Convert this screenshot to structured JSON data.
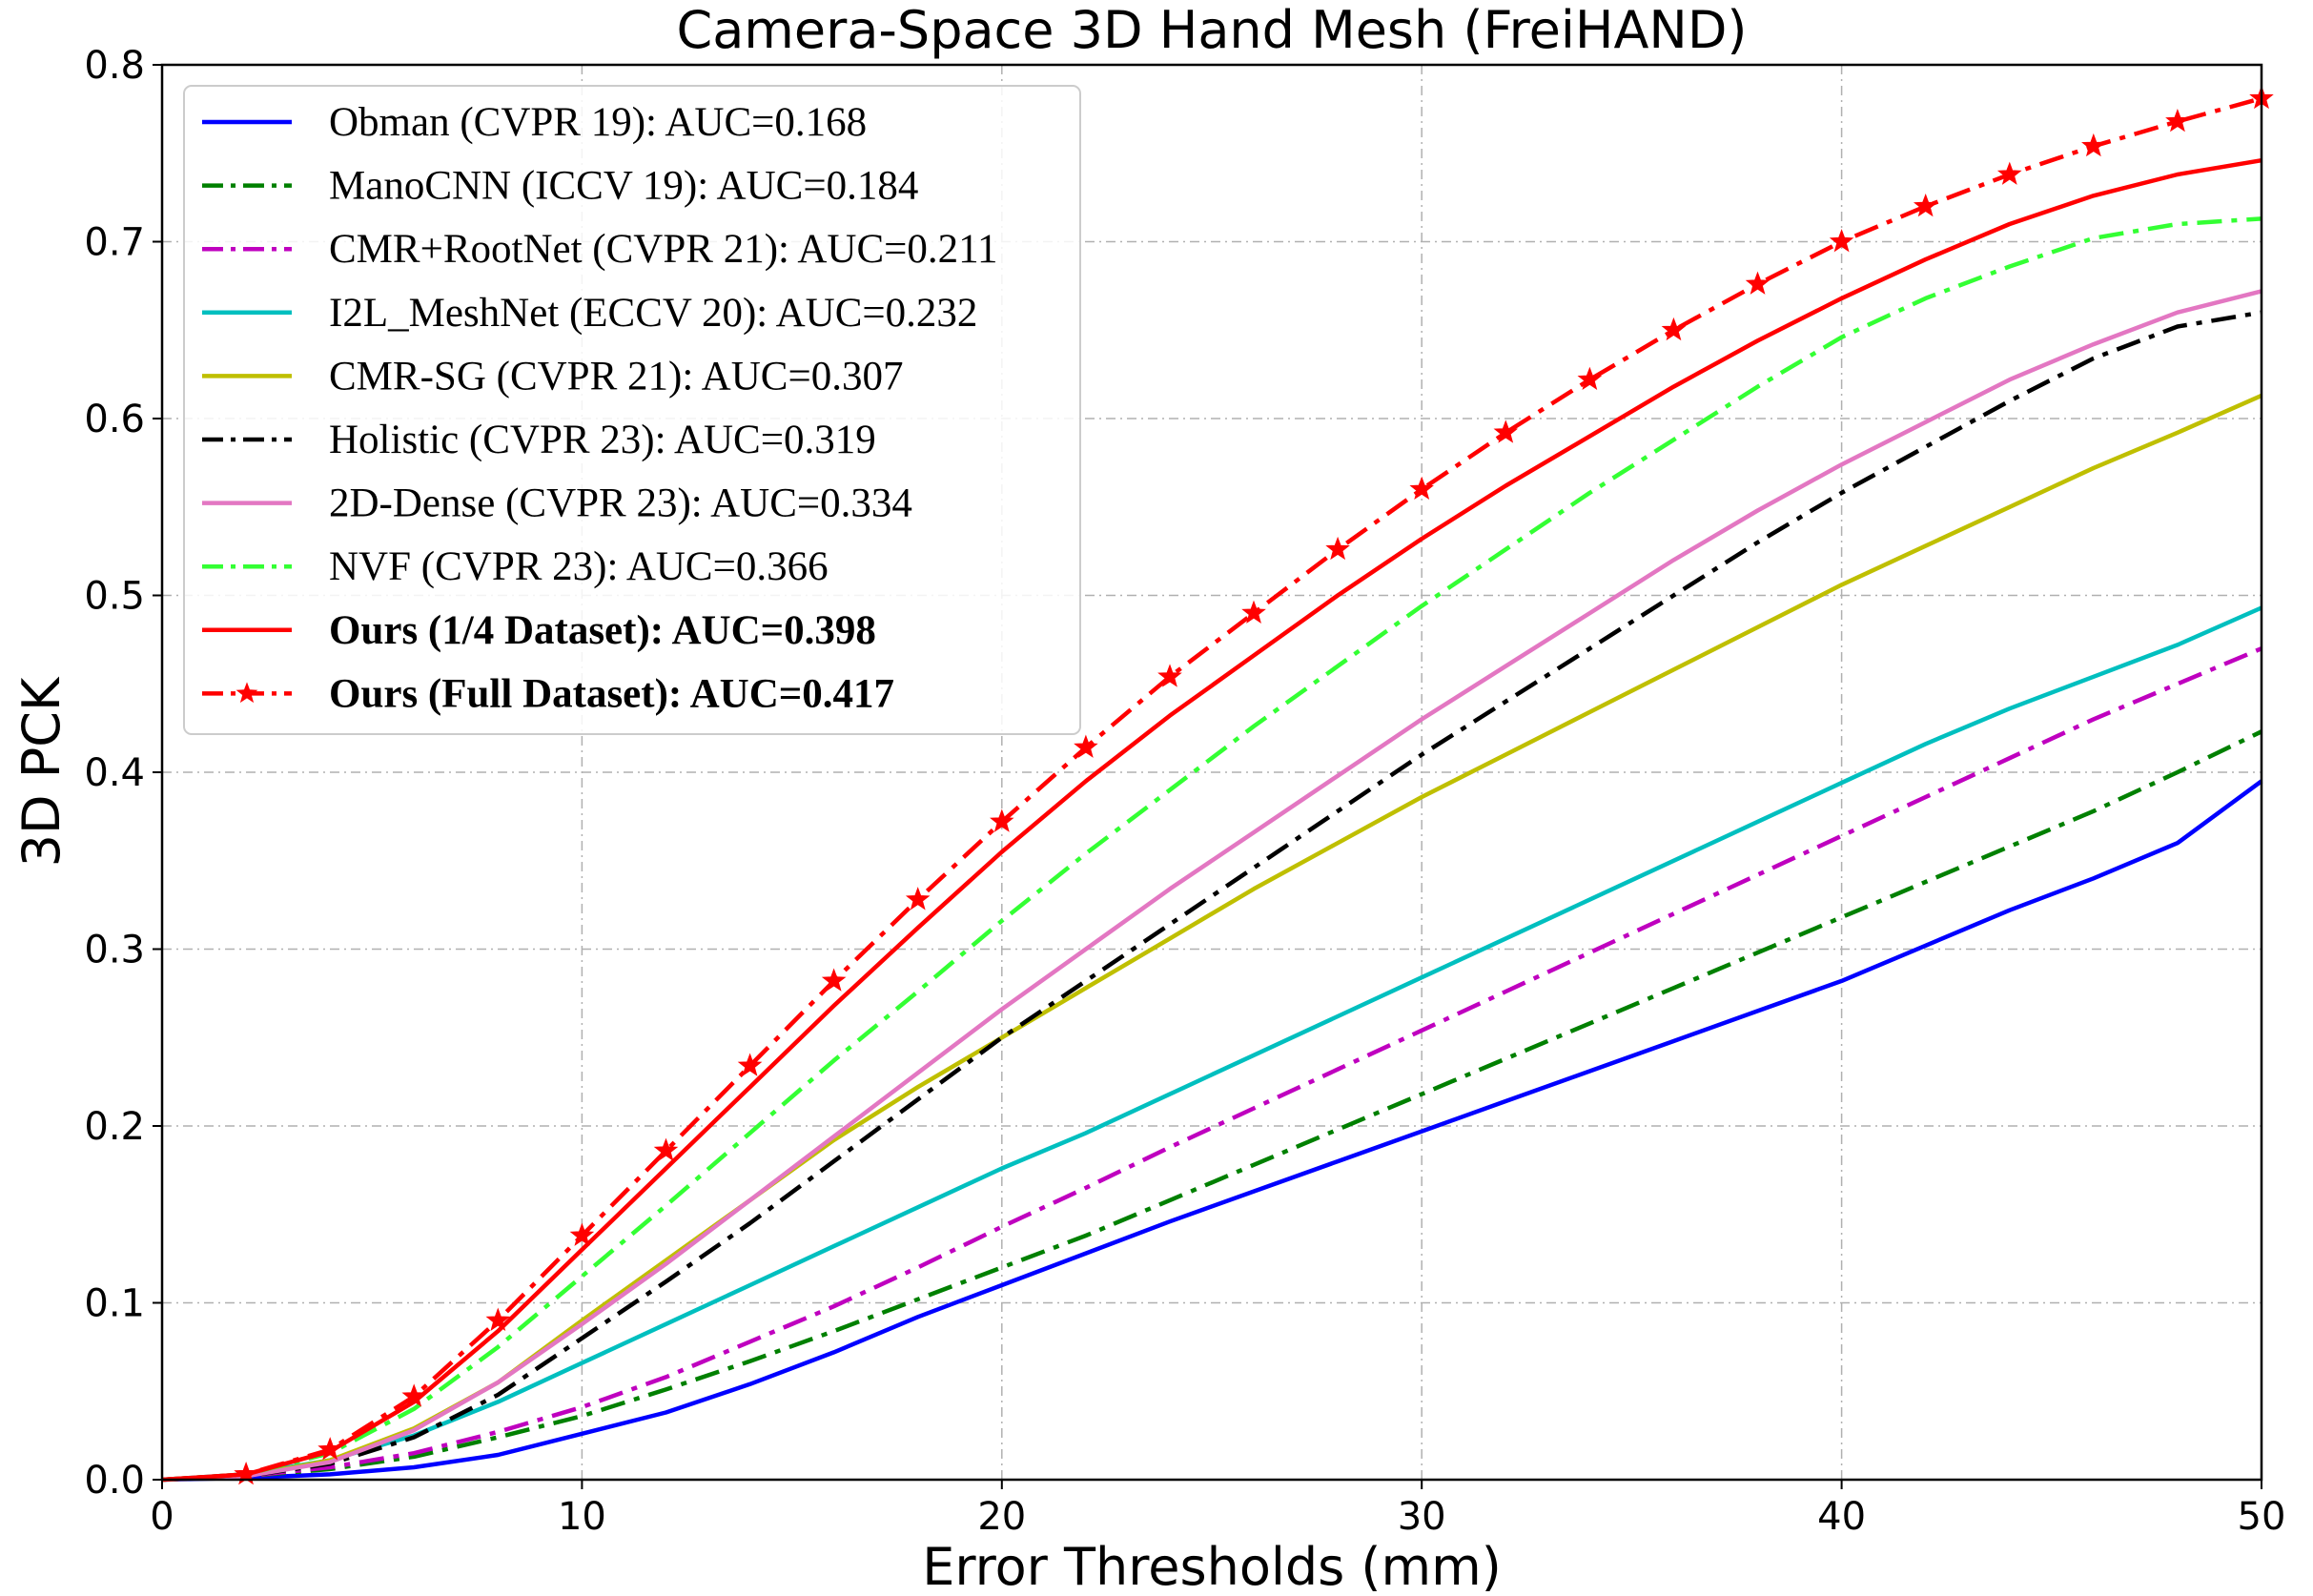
{
  "chart_data": {
    "type": "line",
    "title": "Camera-Space 3D Hand Mesh (FreiHAND)",
    "xlabel": "Error Thresholds (mm)",
    "ylabel": "3D PCK",
    "xlim": [
      0,
      50
    ],
    "ylim": [
      0,
      0.8
    ],
    "x_ticks": [
      "0",
      "10",
      "20",
      "30",
      "40",
      "50"
    ],
    "y_ticks": [
      "0.0",
      "0.1",
      "0.2",
      "0.3",
      "0.4",
      "0.5",
      "0.6",
      "0.7",
      "0.8"
    ],
    "grid": true,
    "legend_position": "upper-left",
    "series": [
      {
        "name": "Obman (CVPR 19): AUC=0.168",
        "color": "#0000ff",
        "style": "solid",
        "marker": "none",
        "bold": false,
        "x": [
          0,
          2,
          4,
          6,
          8,
          10,
          12,
          14,
          16,
          18,
          20,
          22,
          24,
          26,
          28,
          30,
          32,
          34,
          36,
          38,
          40,
          42,
          44,
          46,
          48,
          50
        ],
        "y": [
          0,
          0.001,
          0.003,
          0.007,
          0.014,
          0.026,
          0.038,
          0.054,
          0.072,
          0.092,
          0.11,
          0.128,
          0.146,
          0.163,
          0.18,
          0.197,
          0.214,
          0.231,
          0.248,
          0.265,
          0.282,
          0.302,
          0.322,
          0.34,
          0.36,
          0.395
        ]
      },
      {
        "name": "ManoCNN (ICCV 19): AUC=0.184",
        "color": "#008000",
        "style": "dashdot",
        "marker": "none",
        "bold": false,
        "x": [
          0,
          2,
          4,
          6,
          8,
          10,
          12,
          14,
          16,
          18,
          20,
          22,
          24,
          26,
          28,
          30,
          32,
          34,
          36,
          38,
          40,
          42,
          44,
          46,
          48,
          50
        ],
        "y": [
          0,
          0.002,
          0.006,
          0.013,
          0.024,
          0.036,
          0.051,
          0.067,
          0.084,
          0.102,
          0.12,
          0.138,
          0.158,
          0.178,
          0.198,
          0.218,
          0.238,
          0.258,
          0.278,
          0.298,
          0.318,
          0.338,
          0.358,
          0.378,
          0.4,
          0.423
        ]
      },
      {
        "name": "CMR+RootNet (CVPR 21): AUC=0.211",
        "color": "#bf00bf",
        "style": "dashdot",
        "marker": "none",
        "bold": false,
        "x": [
          0,
          2,
          4,
          6,
          8,
          10,
          12,
          14,
          16,
          18,
          20,
          22,
          24,
          26,
          28,
          30,
          32,
          34,
          36,
          38,
          40,
          42,
          44,
          46,
          48,
          50
        ],
        "y": [
          0,
          0.002,
          0.007,
          0.015,
          0.027,
          0.041,
          0.058,
          0.078,
          0.098,
          0.12,
          0.143,
          0.165,
          0.188,
          0.21,
          0.232,
          0.254,
          0.276,
          0.298,
          0.32,
          0.342,
          0.364,
          0.386,
          0.408,
          0.43,
          0.45,
          0.47
        ]
      },
      {
        "name": "I2L_MeshNet (ECCV 20): AUC=0.232",
        "color": "#00bfbf",
        "style": "solid",
        "marker": "none",
        "bold": false,
        "x": [
          0,
          2,
          4,
          6,
          8,
          10,
          12,
          14,
          16,
          18,
          20,
          22,
          24,
          26,
          28,
          30,
          32,
          34,
          36,
          38,
          40,
          42,
          44,
          46,
          48,
          50
        ],
        "y": [
          0,
          0.003,
          0.011,
          0.025,
          0.044,
          0.066,
          0.088,
          0.11,
          0.132,
          0.154,
          0.176,
          0.196,
          0.218,
          0.24,
          0.262,
          0.284,
          0.306,
          0.328,
          0.35,
          0.372,
          0.394,
          0.416,
          0.436,
          0.454,
          0.472,
          0.493
        ]
      },
      {
        "name": "CMR-SG (CVPR 21): AUC=0.307",
        "color": "#bfbf00",
        "style": "solid",
        "marker": "none",
        "bold": false,
        "x": [
          0,
          2,
          4,
          6,
          8,
          10,
          12,
          14,
          16,
          18,
          20,
          22,
          24,
          26,
          28,
          30,
          32,
          34,
          36,
          38,
          40,
          42,
          44,
          46,
          48,
          50
        ],
        "y": [
          0,
          0.002,
          0.011,
          0.029,
          0.055,
          0.09,
          0.124,
          0.158,
          0.192,
          0.222,
          0.25,
          0.278,
          0.306,
          0.334,
          0.36,
          0.386,
          0.41,
          0.434,
          0.458,
          0.482,
          0.506,
          0.528,
          0.55,
          0.572,
          0.592,
          0.613
        ]
      },
      {
        "name": "Holistic (CVPR 23): AUC=0.319",
        "color": "#000000",
        "style": "dashdot",
        "marker": "none",
        "bold": false,
        "x": [
          0,
          2,
          4,
          6,
          8,
          10,
          12,
          14,
          16,
          18,
          20,
          22,
          24,
          26,
          28,
          30,
          32,
          34,
          36,
          38,
          40,
          42,
          44,
          46,
          48,
          50
        ],
        "y": [
          0,
          0.002,
          0.009,
          0.024,
          0.048,
          0.08,
          0.112,
          0.145,
          0.18,
          0.215,
          0.25,
          0.282,
          0.314,
          0.346,
          0.378,
          0.41,
          0.44,
          0.47,
          0.5,
          0.53,
          0.558,
          0.584,
          0.61,
          0.634,
          0.652,
          0.66
        ]
      },
      {
        "name": "2D-Dense (CVPR 23): AUC=0.334",
        "color": "#e377c2",
        "style": "solid",
        "marker": "none",
        "bold": false,
        "x": [
          0,
          2,
          4,
          6,
          8,
          10,
          12,
          14,
          16,
          18,
          20,
          22,
          24,
          26,
          28,
          30,
          32,
          34,
          36,
          38,
          40,
          42,
          44,
          46,
          48,
          50
        ],
        "y": [
          0,
          0.002,
          0.01,
          0.028,
          0.055,
          0.088,
          0.122,
          0.158,
          0.194,
          0.23,
          0.266,
          0.3,
          0.334,
          0.366,
          0.398,
          0.43,
          0.46,
          0.49,
          0.52,
          0.548,
          0.574,
          0.598,
          0.622,
          0.642,
          0.66,
          0.672
        ]
      },
      {
        "name": "NVF (CVPR 23): AUC=0.366",
        "color": "#33ff33",
        "style": "dashdot",
        "marker": "none",
        "bold": false,
        "x": [
          0,
          2,
          4,
          6,
          8,
          10,
          12,
          14,
          16,
          18,
          20,
          22,
          24,
          26,
          28,
          30,
          32,
          34,
          36,
          38,
          40,
          42,
          44,
          46,
          48,
          50
        ],
        "y": [
          0,
          0.003,
          0.015,
          0.04,
          0.075,
          0.115,
          0.155,
          0.196,
          0.237,
          0.276,
          0.316,
          0.354,
          0.39,
          0.426,
          0.46,
          0.494,
          0.526,
          0.558,
          0.588,
          0.618,
          0.646,
          0.668,
          0.686,
          0.702,
          0.71,
          0.713
        ]
      },
      {
        "name": "Ours (1/4 Dataset): AUC=0.398",
        "color": "#ff0000",
        "style": "solid",
        "marker": "none",
        "bold": true,
        "x": [
          0,
          2,
          4,
          6,
          8,
          10,
          12,
          14,
          16,
          18,
          20,
          22,
          24,
          26,
          28,
          30,
          32,
          34,
          36,
          38,
          40,
          42,
          44,
          46,
          48,
          50
        ],
        "y": [
          0,
          0.003,
          0.016,
          0.044,
          0.084,
          0.13,
          0.176,
          0.222,
          0.268,
          0.312,
          0.355,
          0.395,
          0.432,
          0.466,
          0.5,
          0.532,
          0.562,
          0.59,
          0.618,
          0.644,
          0.668,
          0.69,
          0.71,
          0.726,
          0.738,
          0.746
        ]
      },
      {
        "name": "Ours (Full Dataset): AUC=0.417",
        "color": "#ff0000",
        "style": "dashdot",
        "marker": "star",
        "bold": true,
        "x": [
          0,
          2,
          4,
          6,
          8,
          10,
          12,
          14,
          16,
          18,
          20,
          22,
          24,
          26,
          28,
          30,
          32,
          34,
          36,
          38,
          40,
          42,
          44,
          46,
          48,
          50
        ],
        "y": [
          0,
          0.003,
          0.017,
          0.047,
          0.09,
          0.138,
          0.186,
          0.234,
          0.282,
          0.328,
          0.372,
          0.414,
          0.454,
          0.49,
          0.526,
          0.56,
          0.592,
          0.622,
          0.65,
          0.676,
          0.7,
          0.72,
          0.738,
          0.754,
          0.768,
          0.781
        ]
      }
    ]
  }
}
